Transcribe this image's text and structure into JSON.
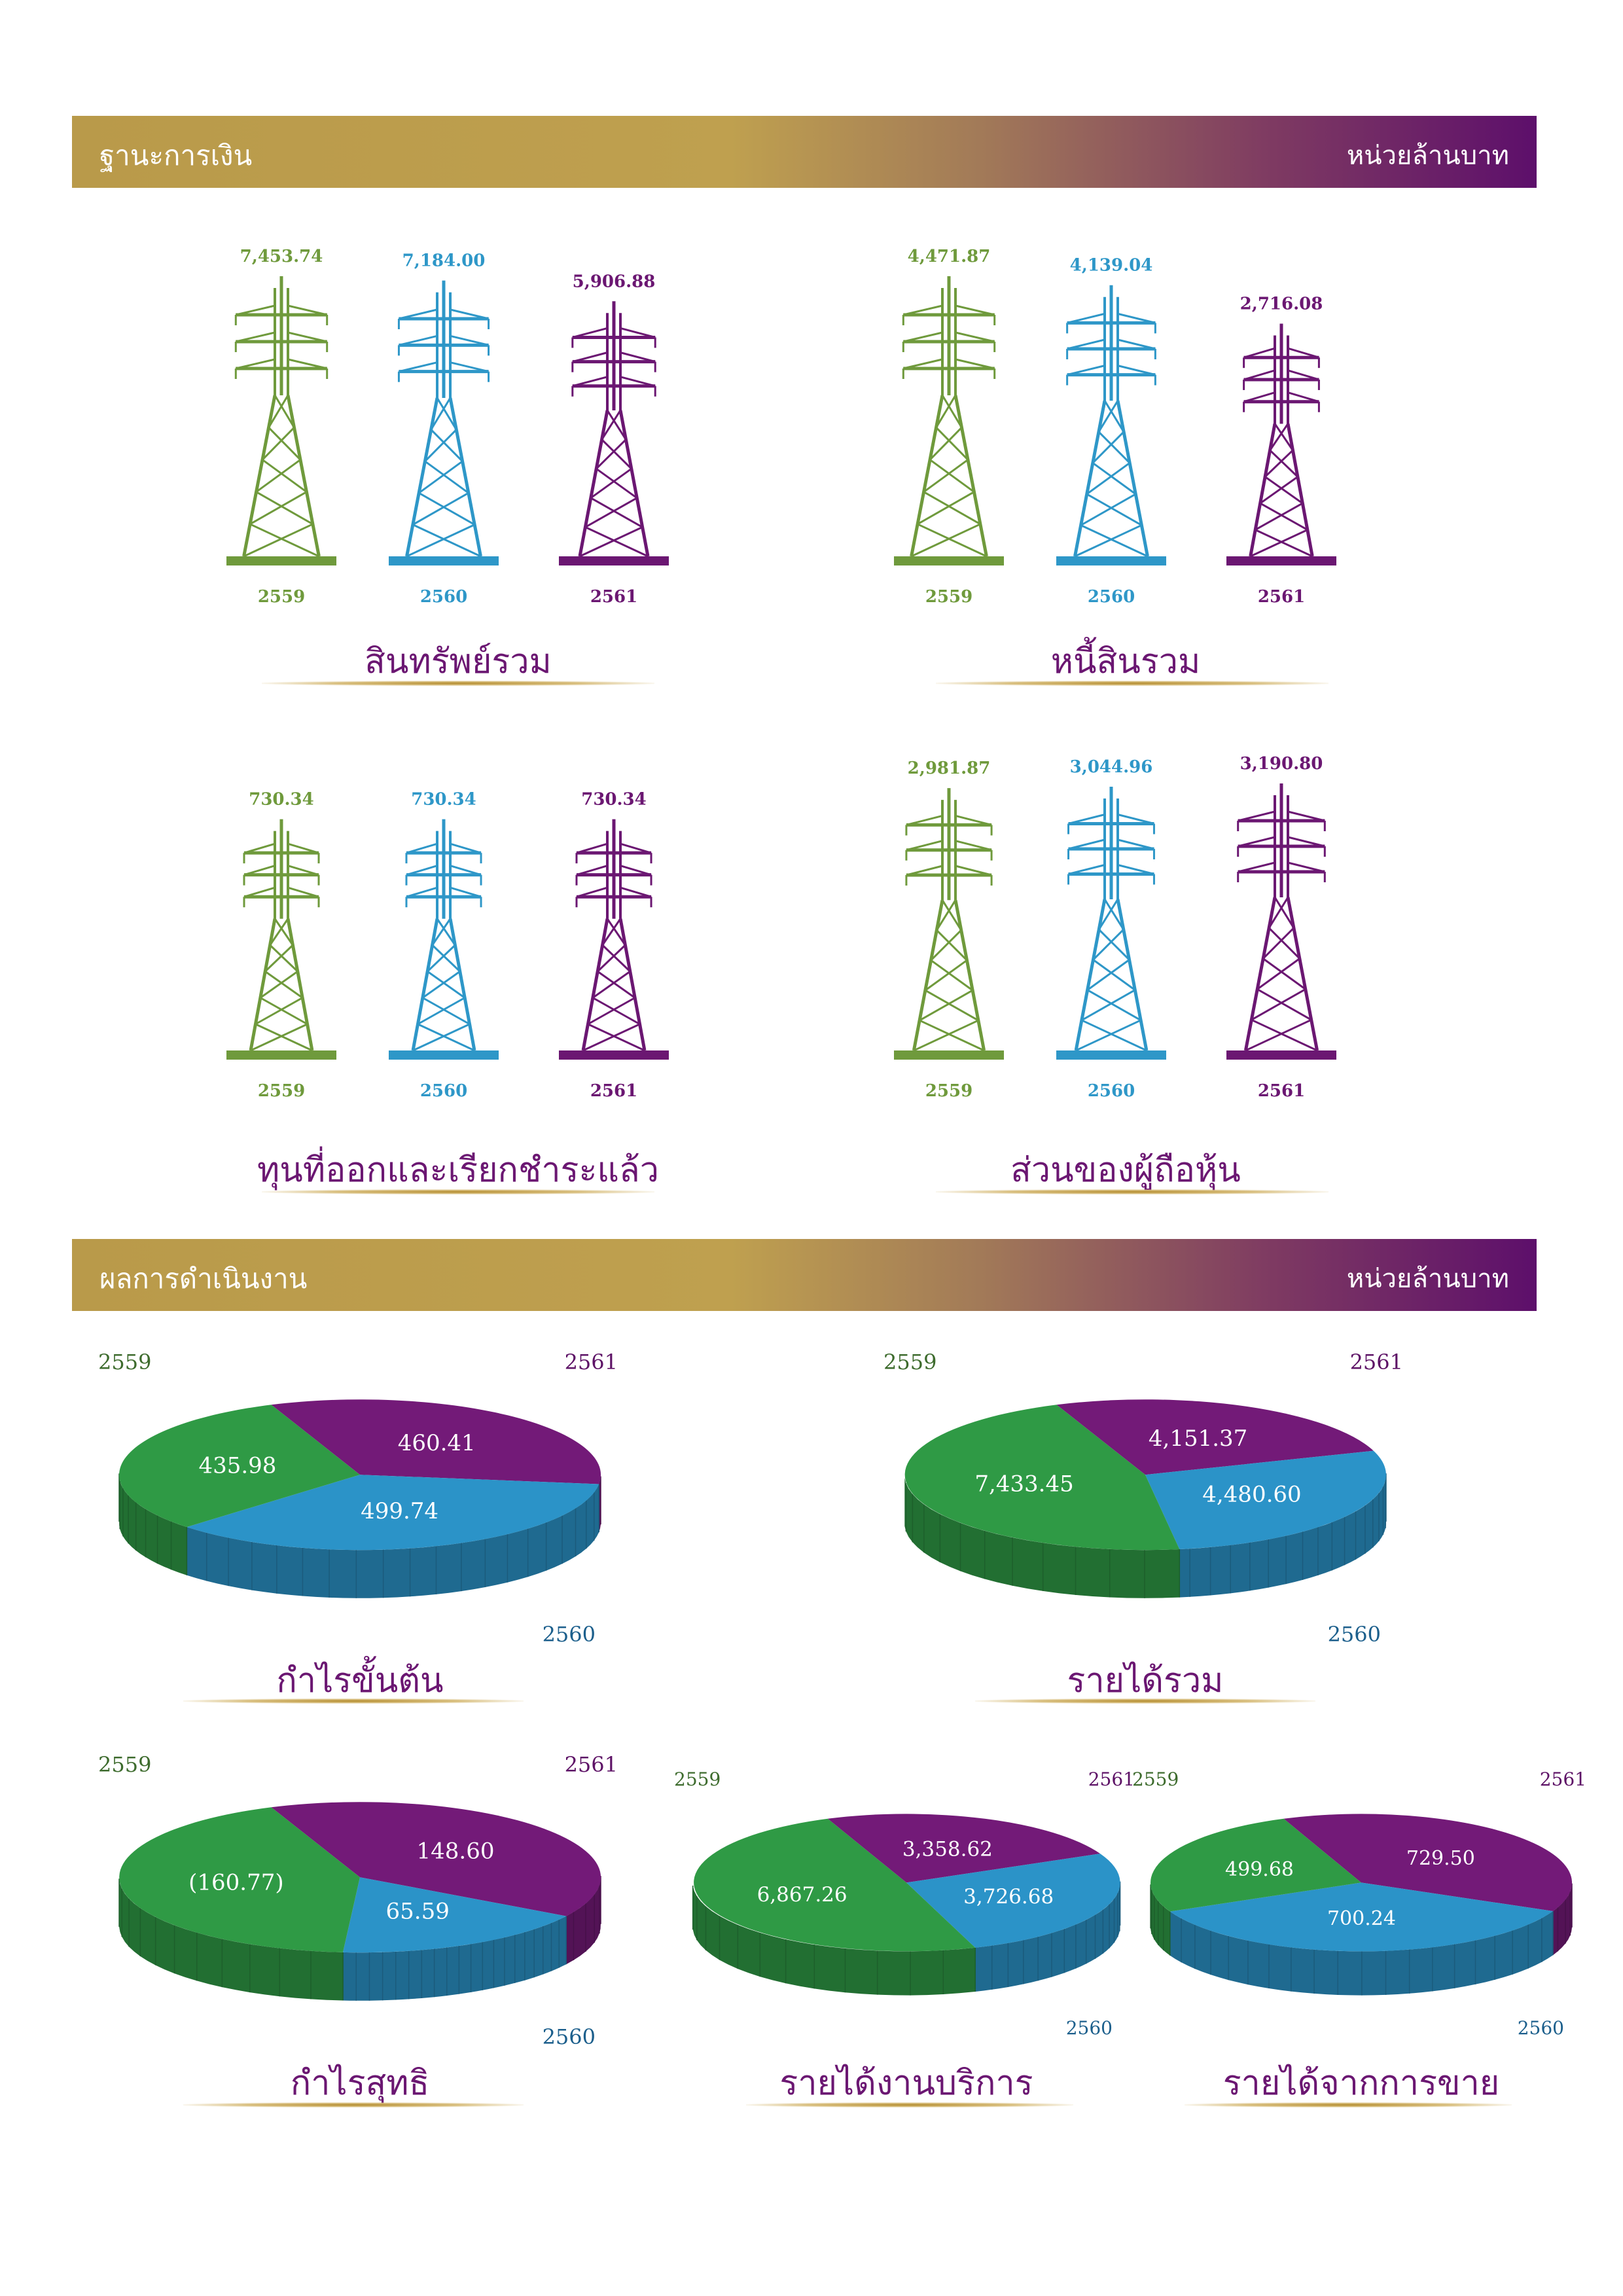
{
  "sections": {
    "financial": {
      "title": "ฐานะการเงิน",
      "unit": "หน่วยล้านบาท"
    },
    "operations": {
      "title": "ผลการดำเนินงาน",
      "unit": "หน่วยล้านบาท"
    }
  },
  "colors": {
    "y2559": "#6f9a3c",
    "y2560": "#2e97c8",
    "y2561": "#6b1772",
    "pie2559": "#2f9a45",
    "pie2560": "#2b93c8",
    "pie2561": "#731a78"
  },
  "chart_data": [
    {
      "type": "bar",
      "title": "สินทรัพย์รวม",
      "categories": [
        "2559",
        "2560",
        "2561"
      ],
      "values": [
        7453.74,
        7184.0,
        5906.88
      ],
      "labels": [
        "7,453.74",
        "7,184.00",
        "5,906.88"
      ]
    },
    {
      "type": "bar",
      "title": "หนี้สินรวม",
      "categories": [
        "2559",
        "2560",
        "2561"
      ],
      "values": [
        4471.87,
        4139.04,
        2716.08
      ],
      "labels": [
        "4,471.87",
        "4,139.04",
        "2,716.08"
      ]
    },
    {
      "type": "bar",
      "title": "ทุนที่ออกและเรียกชำระแล้ว",
      "categories": [
        "2559",
        "2560",
        "2561"
      ],
      "values": [
        730.34,
        730.34,
        730.34
      ],
      "labels": [
        "730.34",
        "730.34",
        "730.34"
      ]
    },
    {
      "type": "bar",
      "title": "ส่วนของผู้ถือหุ้น",
      "categories": [
        "2559",
        "2560",
        "2561"
      ],
      "values": [
        2981.87,
        3044.96,
        3190.8
      ],
      "labels": [
        "2,981.87",
        "3,044.96",
        "3,190.80"
      ]
    },
    {
      "type": "pie",
      "title": "กำไรขั้นต้น",
      "categories": [
        "2559",
        "2560",
        "2561"
      ],
      "values": [
        435.98,
        499.74,
        460.41
      ],
      "labels": [
        "435.98",
        "499.74",
        "460.41"
      ]
    },
    {
      "type": "pie",
      "title": "รายได้รวม",
      "categories": [
        "2559",
        "2560",
        "2561"
      ],
      "values": [
        7433.45,
        4480.6,
        4151.37
      ],
      "labels": [
        "7,433.45",
        "4,480.60",
        "4,151.37"
      ]
    },
    {
      "type": "pie",
      "title": "กำไรสุทธิ",
      "categories": [
        "2559",
        "2560",
        "2561"
      ],
      "values": [
        -160.77,
        65.59,
        148.6
      ],
      "labels": [
        "(160.77)",
        "65.59",
        "148.60"
      ]
    },
    {
      "type": "pie",
      "title": "รายได้งานบริการ",
      "categories": [
        "2559",
        "2560",
        "2561"
      ],
      "values": [
        6867.26,
        3726.68,
        3358.62
      ],
      "labels": [
        "6,867.26",
        "3,726.68",
        "3,358.62"
      ]
    },
    {
      "type": "pie",
      "title": "รายได้จากการขาย",
      "categories": [
        "2559",
        "2560",
        "2561"
      ],
      "values": [
        499.68,
        700.24,
        729.5
      ],
      "labels": [
        "499.68",
        "700.24",
        "729.50"
      ]
    }
  ]
}
